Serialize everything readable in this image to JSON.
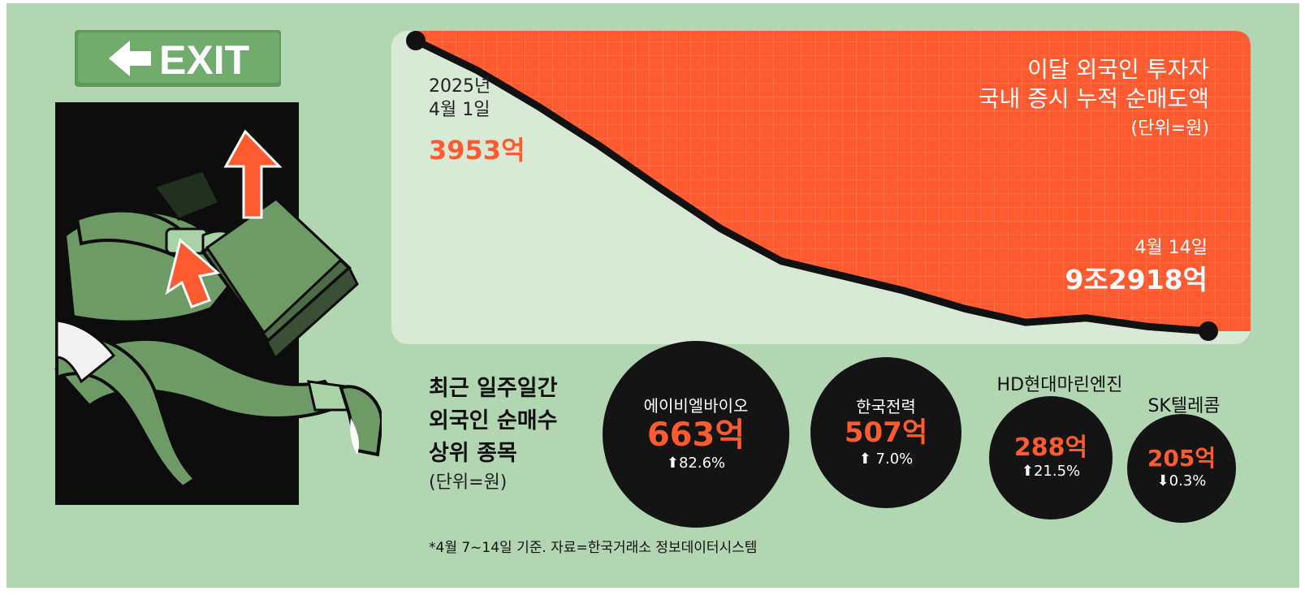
{
  "chart_data": {
    "type": "area",
    "title": "이달 외국인 투자자\n국내 증시 누적 순매도액",
    "title_lines": [
      "이달 외국인 투자자",
      "국내 증시 누적 순매도액"
    ],
    "unit_note": "(단위=원)",
    "start_label": {
      "date_lines": [
        "2025년",
        "4월 1일"
      ],
      "value": "3953억"
    },
    "end_label": {
      "date": "4월 14일",
      "value": "9조2918억"
    },
    "series": [
      {
        "values_billion_won": [
          395.3,
          1300,
          2400,
          3600,
          4900,
          6150,
          7150,
          7600,
          8050,
          8600,
          9020,
          8890,
          9150,
          9292
        ]
      }
    ],
    "ylim": [
      0,
      9292
    ],
    "grid": true
  },
  "bubbles": {
    "heading_lines": [
      "최근 일주일간",
      "외국인 순매수",
      "상위 종목"
    ],
    "unit_note": "(단위=원)",
    "items": [
      {
        "name": "에이비엘바이오",
        "value": "663억",
        "arrow": "up",
        "change": "82.6%",
        "amount": 663
      },
      {
        "name": "한국전력",
        "value": "507억",
        "arrow": "up",
        "change": "7.0%",
        "amount": 507
      },
      {
        "name": "HD현대마린엔진",
        "value": "288억",
        "arrow": "up",
        "change": "21.5%",
        "amount": 288
      },
      {
        "name": "SK텔레콤",
        "value": "205억",
        "arrow": "down",
        "change": "0.3%",
        "amount": 205
      }
    ]
  },
  "footnote": "*4월 7~14일 기준. 자료=한국거래소 정보데이터시스템",
  "exit_sign": {
    "text": "EXIT",
    "arrow": "left-arrow-icon"
  },
  "colors": {
    "background": "#b2d5b2",
    "chart_fill_light": "#d8ead6",
    "chart_fill_red": "#ff5a30",
    "line": "#111111",
    "accent_text": "#ff5a30",
    "sign_green": "#6fa86a"
  }
}
